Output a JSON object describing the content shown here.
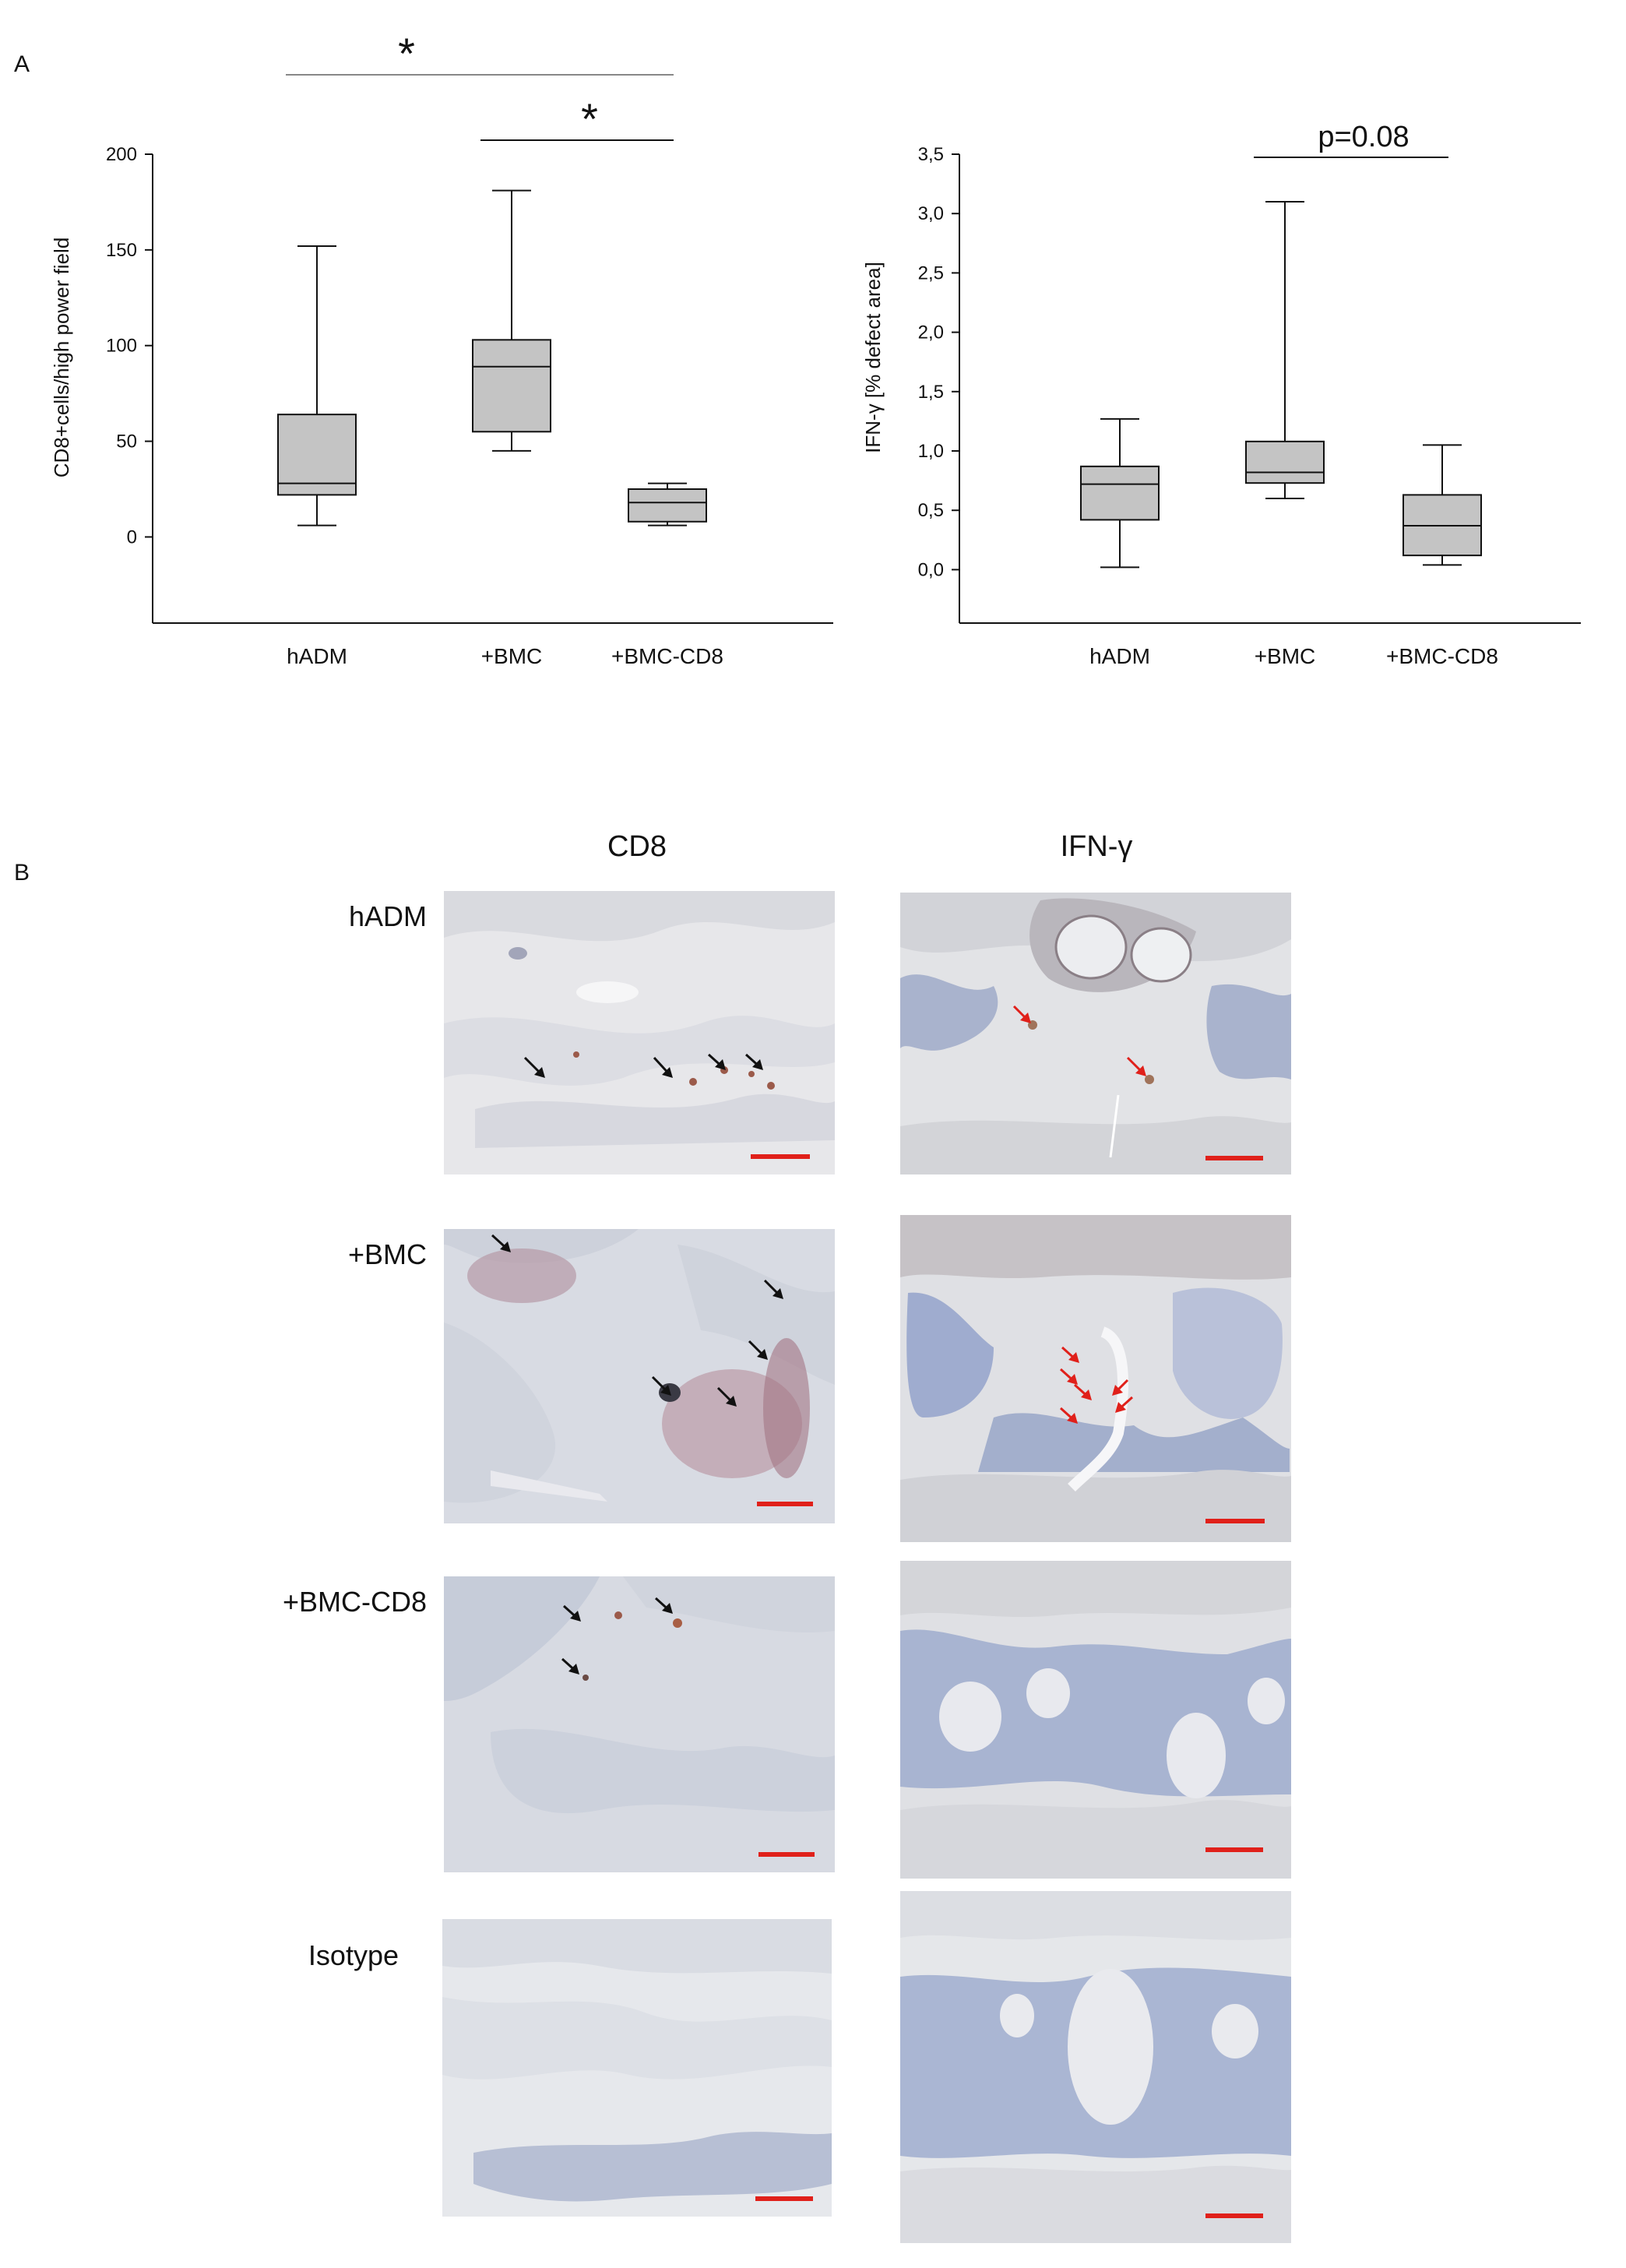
{
  "panel_a_label": "A",
  "panel_b_label": "B",
  "chart_data": [
    {
      "type": "box",
      "ylabel": "CD8+cells/high power field",
      "categories": [
        "hADM",
        "+BMC",
        "+BMC-CD8"
      ],
      "ylim": [
        -45,
        200
      ],
      "yticks": [
        0,
        50,
        100,
        150,
        200
      ],
      "ytick_labels": [
        "0",
        "50",
        "100",
        "150",
        "200"
      ],
      "boxes": [
        {
          "category": "hADM",
          "min": 6,
          "q1": 22,
          "median": 28,
          "q3": 64,
          "max": 152
        },
        {
          "category": "+BMC",
          "min": 45,
          "q1": 55,
          "median": 89,
          "q3": 103,
          "max": 181
        },
        {
          "category": "+BMC-CD8",
          "min": 6,
          "q1": 8,
          "median": 18,
          "q3": 25,
          "max": 28
        }
      ],
      "significance": [
        {
          "from": "hADM",
          "to": "+BMC-CD8",
          "label": "*"
        },
        {
          "from": "+BMC",
          "to": "+BMC-CD8",
          "label": "*"
        }
      ],
      "color": "#c4c4c4"
    },
    {
      "type": "box",
      "ylabel": "IFN-γ [% defect area]",
      "categories": [
        "hADM",
        "+BMC",
        "+BMC-CD8"
      ],
      "ylim": [
        -0.45,
        3.5
      ],
      "yticks": [
        0,
        0.5,
        1.0,
        1.5,
        2.0,
        2.5,
        3.0,
        3.5
      ],
      "ytick_labels": [
        "0,0",
        "0,5",
        "1,0",
        "1,5",
        "2,0",
        "2,5",
        "3,0",
        "3,5"
      ],
      "boxes": [
        {
          "category": "hADM",
          "min": 0.02,
          "q1": 0.42,
          "median": 0.72,
          "q3": 0.87,
          "max": 1.27
        },
        {
          "category": "+BMC",
          "min": 0.6,
          "q1": 0.73,
          "median": 0.82,
          "q3": 1.08,
          "max": 3.1
        },
        {
          "category": "+BMC-CD8",
          "min": 0.04,
          "q1": 0.12,
          "median": 0.37,
          "q3": 0.63,
          "max": 1.05
        }
      ],
      "significance": [
        {
          "from": "+BMC",
          "to": "+BMC-CD8",
          "label": "p=0.08"
        }
      ],
      "color": "#c4c4c4"
    }
  ],
  "micrographs": {
    "columns": [
      "CD8",
      "IFN-γ"
    ],
    "rows": [
      "hADM",
      "+BMC",
      "+BMC-CD8",
      "Isotype"
    ],
    "scale_bar_color": "#e0201a",
    "arrow_colors": {
      "CD8": "#111111",
      "IFN-γ": "#e0201a"
    }
  }
}
